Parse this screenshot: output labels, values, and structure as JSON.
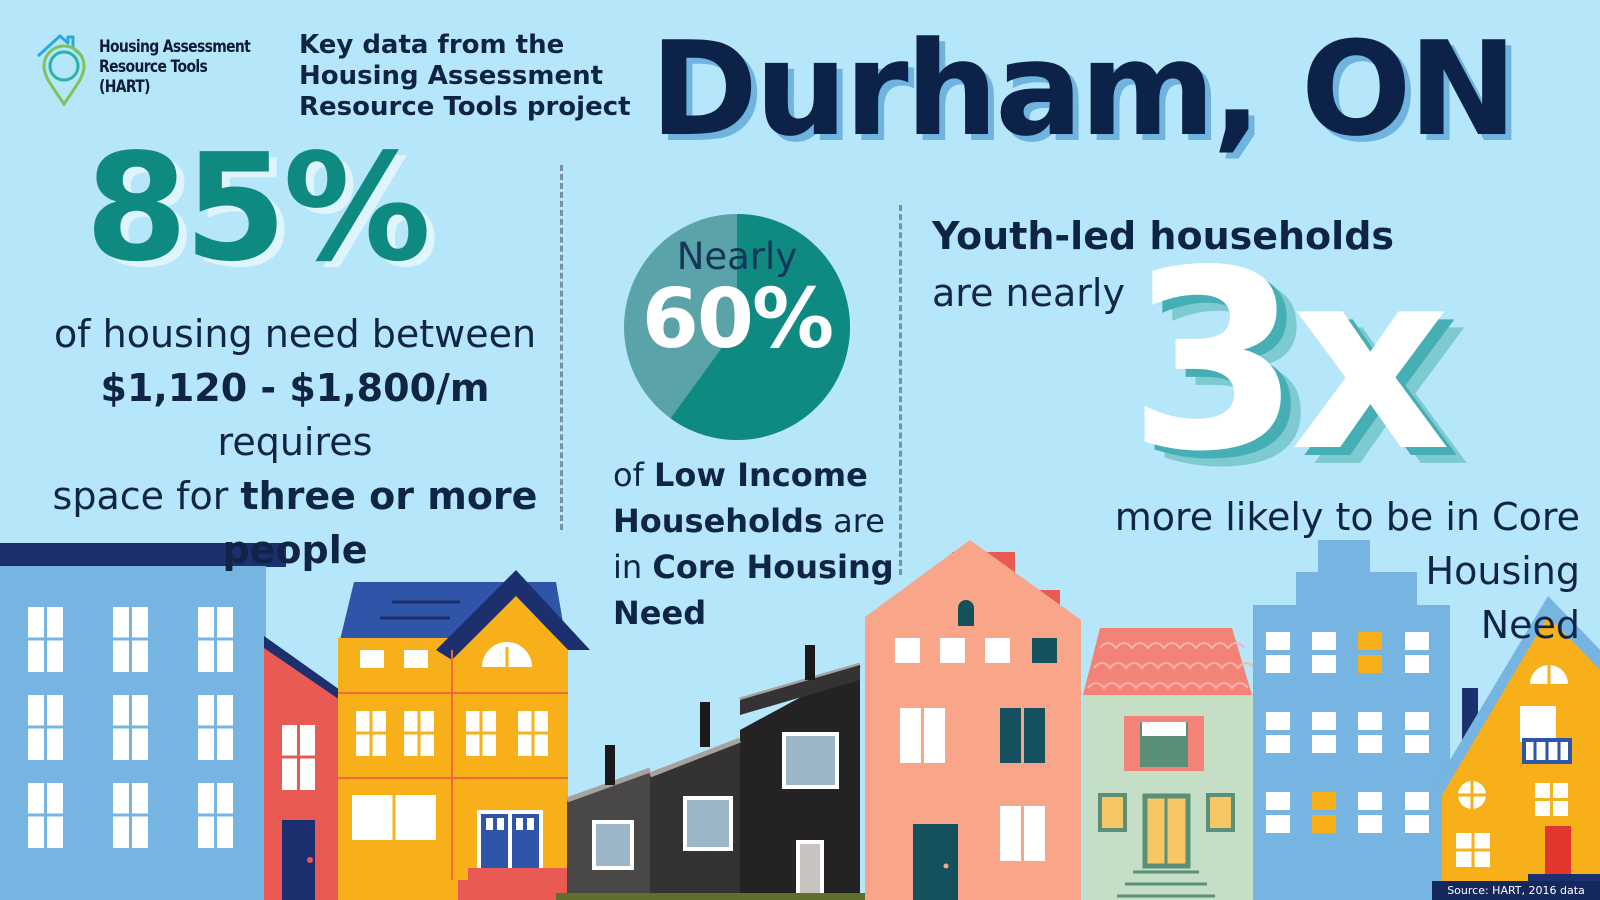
{
  "logo": {
    "text": "Housing Assessment\nResource Tools\n(HART)"
  },
  "intro": "Key data from the\nHousing Assessment\nResource Tools project",
  "title": "Durham, ON",
  "stat1": {
    "big": "85%",
    "line1": "of housing need between",
    "range": "$1,120 - $1,800/m",
    "line2_rest": " requires",
    "line3_start": "space for ",
    "emph": "three or more",
    "line4": "people"
  },
  "stat2": {
    "nearly": "Nearly",
    "pct": "60%",
    "pie_fraction": 0.6,
    "t_of": "of ",
    "t_lih": "Low Income",
    "t_households": "Households",
    "t_are": " are",
    "t_in": "in ",
    "t_core": "Core Housing",
    "t_need": "Need"
  },
  "stat3": {
    "youth": "Youth-led households",
    "nearly": "are nearly",
    "big": "3x",
    "rest": "more likely to be in Core Housing\nNeed"
  },
  "source": "Source: HART, 2016 data",
  "colors": {
    "background": "#b5e6fa",
    "teal": "#0e8a80",
    "navy": "#0d2248",
    "pie_light": "#5aa3a8"
  }
}
